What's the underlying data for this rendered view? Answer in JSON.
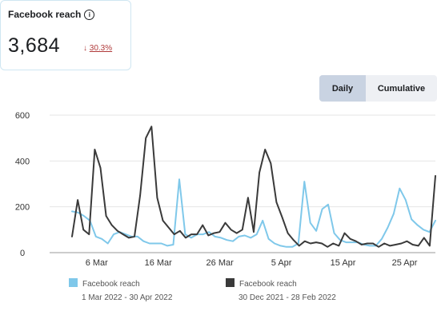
{
  "kpi": {
    "title": "Facebook reach",
    "info_icon": "info-icon",
    "value": "3,684",
    "change_arrow": "↓",
    "change_pct": "30.3%",
    "change_color": "#b03a3a"
  },
  "toggle": {
    "daily": "Daily",
    "cumulative": "Cumulative",
    "selected": "Daily"
  },
  "legend": [
    {
      "name": "Facebook reach",
      "range": "1 Mar 2022 - 30 Apr 2022",
      "color": "#7fc8ea"
    },
    {
      "name": "Facebook reach",
      "range": "30 Dec 2021 - 28 Feb 2022",
      "color": "#3a3a3a"
    }
  ],
  "chart_data": {
    "type": "line",
    "ylim": [
      0,
      600
    ],
    "yticks": [
      0,
      200,
      400,
      600
    ],
    "xticks": [
      {
        "index": 5,
        "label": "6 Mar"
      },
      {
        "index": 15,
        "label": "16 Mar"
      },
      {
        "index": 25,
        "label": "26 Mar"
      },
      {
        "index": 35,
        "label": "5 Apr"
      },
      {
        "index": 45,
        "label": "15 Apr"
      },
      {
        "index": 55,
        "label": "25 Apr"
      }
    ],
    "grid": true,
    "series": [
      {
        "name": "Facebook reach",
        "color": "#7fc8ea",
        "values": [
          180,
          175,
          160,
          140,
          70,
          60,
          40,
          80,
          90,
          80,
          70,
          70,
          50,
          40,
          40,
          40,
          30,
          35,
          320,
          80,
          65,
          80,
          80,
          90,
          70,
          65,
          55,
          50,
          70,
          75,
          65,
          80,
          140,
          60,
          40,
          30,
          25,
          25,
          40,
          310,
          130,
          95,
          190,
          210,
          85,
          55,
          45,
          45,
          45,
          35,
          30,
          30,
          60,
          110,
          170,
          280,
          230,
          145,
          120,
          100,
          90,
          140
        ]
      },
      {
        "name": "Facebook reach",
        "color": "#3a3a3a",
        "values": [
          70,
          230,
          100,
          80,
          450,
          370,
          160,
          120,
          95,
          80,
          65,
          70,
          250,
          500,
          550,
          240,
          140,
          110,
          80,
          95,
          65,
          80,
          80,
          120,
          75,
          85,
          90,
          130,
          100,
          85,
          100,
          240,
          90,
          350,
          450,
          390,
          220,
          155,
          85,
          55,
          30,
          50,
          40,
          45,
          40,
          25,
          40,
          30,
          85,
          60,
          50,
          35,
          40,
          40,
          25,
          40,
          30,
          35,
          40,
          50,
          35,
          30,
          65,
          30,
          335
        ]
      }
    ]
  }
}
